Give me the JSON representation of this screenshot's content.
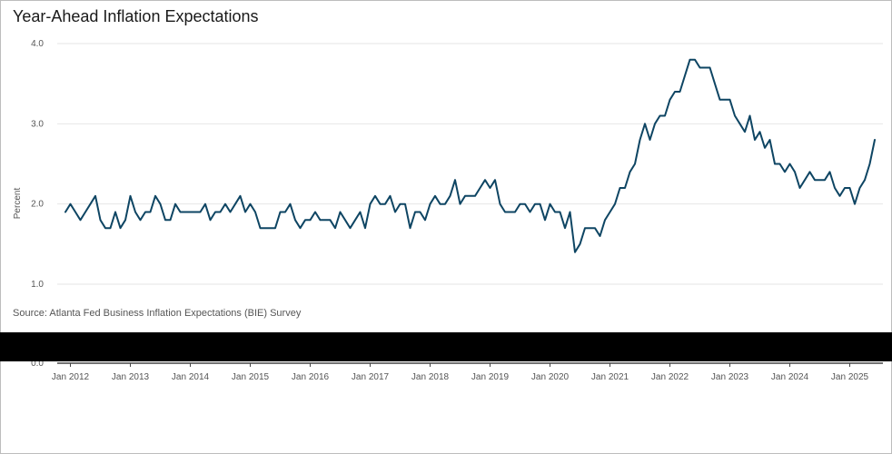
{
  "title": "Year-Ahead Inflation Expectations",
  "source": "Source: Atlanta Fed Business Inflation Expectations (BIE) Survey",
  "colors": {
    "line": "#0e4563",
    "grid": "#e6e6e6",
    "redaction": "#000000"
  },
  "chart_data": {
    "type": "line",
    "ylabel": "Percent",
    "ylim": [
      1.0,
      4.0
    ],
    "yticks": [
      "4.0",
      "3.0",
      "2.0",
      "1.0"
    ],
    "xticks": [
      "Jan 2012",
      "Jan 2013",
      "Jan 2014",
      "Jan 2015",
      "Jan 2016",
      "Jan 2017",
      "Jan 2018",
      "Jan 2019",
      "Jan 2020",
      "Jan 2021",
      "Jan 2022",
      "Jan 2023",
      "Jan 2024",
      "Jan 2025"
    ],
    "xaxis_extra_tick": "0.0",
    "x_start": "2011-12",
    "frequency": "monthly",
    "grid": true,
    "series": [
      {
        "values": [
          1.9,
          2.0,
          1.9,
          1.8,
          1.9,
          2.0,
          2.1,
          1.8,
          1.7,
          1.7,
          1.9,
          1.7,
          1.8,
          2.1,
          1.9,
          1.8,
          1.9,
          1.9,
          2.1,
          2.0,
          1.8,
          1.8,
          2.0,
          1.9,
          1.9,
          1.9,
          1.9,
          1.9,
          2.0,
          1.8,
          1.9,
          1.9,
          2.0,
          1.9,
          2.0,
          2.1,
          1.9,
          2.0,
          1.9,
          1.7,
          1.7,
          1.7,
          1.7,
          1.9,
          1.9,
          2.0,
          1.8,
          1.7,
          1.8,
          1.8,
          1.9,
          1.8,
          1.8,
          1.8,
          1.7,
          1.9,
          1.8,
          1.7,
          1.8,
          1.9,
          1.7,
          2.0,
          2.1,
          2.0,
          2.0,
          2.1,
          1.9,
          2.0,
          2.0,
          1.7,
          1.9,
          1.9,
          1.8,
          2.0,
          2.1,
          2.0,
          2.0,
          2.1,
          2.3,
          2.0,
          2.1,
          2.1,
          2.1,
          2.2,
          2.3,
          2.2,
          2.3,
          2.0,
          1.9,
          1.9,
          1.9,
          2.0,
          2.0,
          1.9,
          2.0,
          2.0,
          1.8,
          2.0,
          1.9,
          1.9,
          1.7,
          1.9,
          1.4,
          1.5,
          1.7,
          1.7,
          1.7,
          1.6,
          1.8,
          1.9,
          2.0,
          2.2,
          2.2,
          2.4,
          2.5,
          2.8,
          3.0,
          2.8,
          3.0,
          3.1,
          3.1,
          3.3,
          3.4,
          3.4,
          3.6,
          3.8,
          3.8,
          3.7,
          3.7,
          3.7,
          3.5,
          3.3,
          3.3,
          3.3,
          3.1,
          3.0,
          2.9,
          3.1,
          2.8,
          2.9,
          2.7,
          2.8,
          2.5,
          2.5,
          2.4,
          2.5,
          2.4,
          2.2,
          2.3,
          2.4,
          2.3,
          2.3,
          2.3,
          2.4,
          2.2,
          2.1,
          2.2,
          2.2,
          2.0,
          2.2,
          2.3,
          2.5,
          2.8
        ]
      }
    ]
  }
}
